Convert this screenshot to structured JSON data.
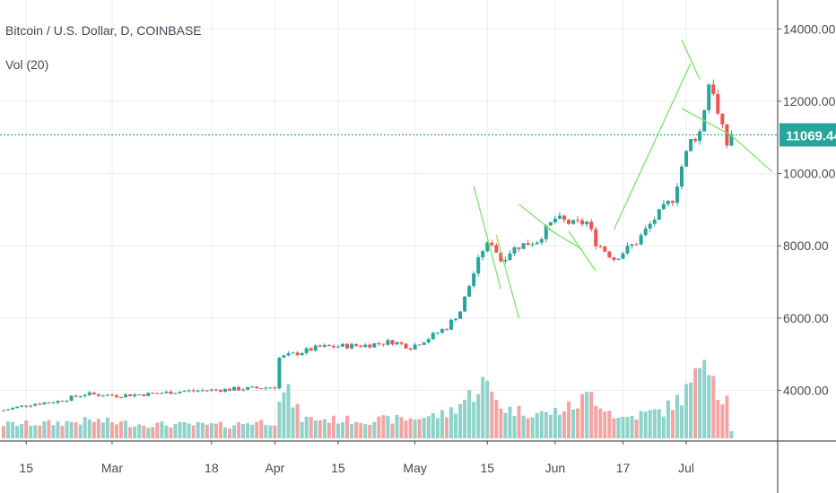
{
  "header": {
    "symbol_line": "Bitcoin / U.S. Dollar, D, COINBASE",
    "indicator": "Vol (20)"
  },
  "colors": {
    "up": "#26a69a",
    "down": "#ef5350",
    "up_vol": "#8fd2c9",
    "down_vol": "#f2a5a3",
    "trendline": "#7fe36b",
    "grid": "#e9edf2",
    "axis_text": "#4a4a4a",
    "price_tag_bg": "#26a69a",
    "price_tag_text": "#ffffff"
  },
  "chart_data": {
    "type": "candlestick",
    "price_axis": {
      "ticks": [
        4000,
        6000,
        8000,
        10000,
        12000,
        14000
      ],
      "tick_labels": [
        "4000.00",
        "6000.00",
        "8000.00",
        "10000.00",
        "12000.00",
        "14000.00"
      ],
      "range": [
        2600,
        14800
      ]
    },
    "time_axis": {
      "labels": [
        "15",
        "Mar",
        "18",
        "Apr",
        "15",
        "May",
        "15",
        "Jun",
        "17",
        "Jul"
      ],
      "label_candle_index": [
        5,
        24,
        46,
        60,
        74,
        91,
        107,
        122,
        137,
        151
      ],
      "candle_count": 172
    },
    "last_price": 11069.44,
    "last_price_label": "11069.44",
    "ohlc_knots": [
      [
        0,
        3450
      ],
      [
        6,
        3620
      ],
      [
        12,
        3700
      ],
      [
        18,
        3900
      ],
      [
        25,
        3860
      ],
      [
        32,
        3900
      ],
      [
        40,
        3980
      ],
      [
        48,
        4020
      ],
      [
        56,
        4060
      ],
      [
        60,
        4100
      ],
      [
        61,
        4900
      ],
      [
        64,
        5000
      ],
      [
        70,
        5200
      ],
      [
        80,
        5250
      ],
      [
        86,
        5350
      ],
      [
        90,
        5200
      ],
      [
        94,
        5450
      ],
      [
        98,
        5750
      ],
      [
        101,
        6200
      ],
      [
        104,
        7250
      ],
      [
        106,
        7900
      ],
      [
        108,
        8100
      ],
      [
        110,
        7600
      ],
      [
        112,
        7850
      ],
      [
        114,
        8000
      ],
      [
        118,
        8150
      ],
      [
        122,
        8750
      ],
      [
        126,
        8600
      ],
      [
        129,
        8650
      ],
      [
        131,
        8100
      ],
      [
        135,
        7650
      ],
      [
        140,
        8100
      ],
      [
        144,
        8750
      ],
      [
        148,
        9300
      ],
      [
        150,
        10200
      ],
      [
        152,
        10900
      ],
      [
        154,
        11150
      ],
      [
        156,
        12500
      ],
      [
        157,
        12300
      ],
      [
        158,
        11600
      ],
      [
        160,
        10800
      ],
      [
        161,
        11069
      ]
    ],
    "volume_knots": [
      [
        0,
        300
      ],
      [
        10,
        320
      ],
      [
        20,
        380
      ],
      [
        30,
        300
      ],
      [
        50,
        280
      ],
      [
        55,
        350
      ],
      [
        60,
        360
      ],
      [
        61,
        900
      ],
      [
        63,
        950
      ],
      [
        66,
        420
      ],
      [
        80,
        380
      ],
      [
        90,
        420
      ],
      [
        98,
        520
      ],
      [
        104,
        980
      ],
      [
        106,
        1200
      ],
      [
        108,
        950
      ],
      [
        111,
        620
      ],
      [
        120,
        520
      ],
      [
        126,
        680
      ],
      [
        130,
        950
      ],
      [
        136,
        420
      ],
      [
        146,
        600
      ],
      [
        150,
        880
      ],
      [
        153,
        1250
      ],
      [
        155,
        2000
      ],
      [
        156,
        1800
      ],
      [
        158,
        1000
      ],
      [
        160,
        850
      ],
      [
        161,
        180
      ]
    ],
    "volume_scale_max": 2300,
    "trendlines": [
      {
        "from": [
          104,
          9650
        ],
        "to": [
          110,
          6800
        ]
      },
      {
        "from": [
          109,
          8300
        ],
        "to": [
          114,
          6000
        ]
      },
      {
        "from": [
          114,
          9150
        ],
        "to": [
          122,
          8350
        ]
      },
      {
        "from": [
          120,
          8500
        ],
        "to": [
          128,
          7900
        ]
      },
      {
        "from": [
          125,
          8400
        ],
        "to": [
          131,
          7300
        ]
      },
      {
        "from": [
          135,
          8450
        ],
        "to": [
          152,
          13050
        ]
      },
      {
        "from": [
          150,
          13700
        ],
        "to": [
          154,
          12600
        ]
      },
      {
        "from": [
          150,
          11800
        ],
        "to": [
          161,
          11050
        ]
      },
      {
        "from": [
          161,
          11050
        ],
        "to": [
          170,
          10050
        ]
      }
    ]
  }
}
